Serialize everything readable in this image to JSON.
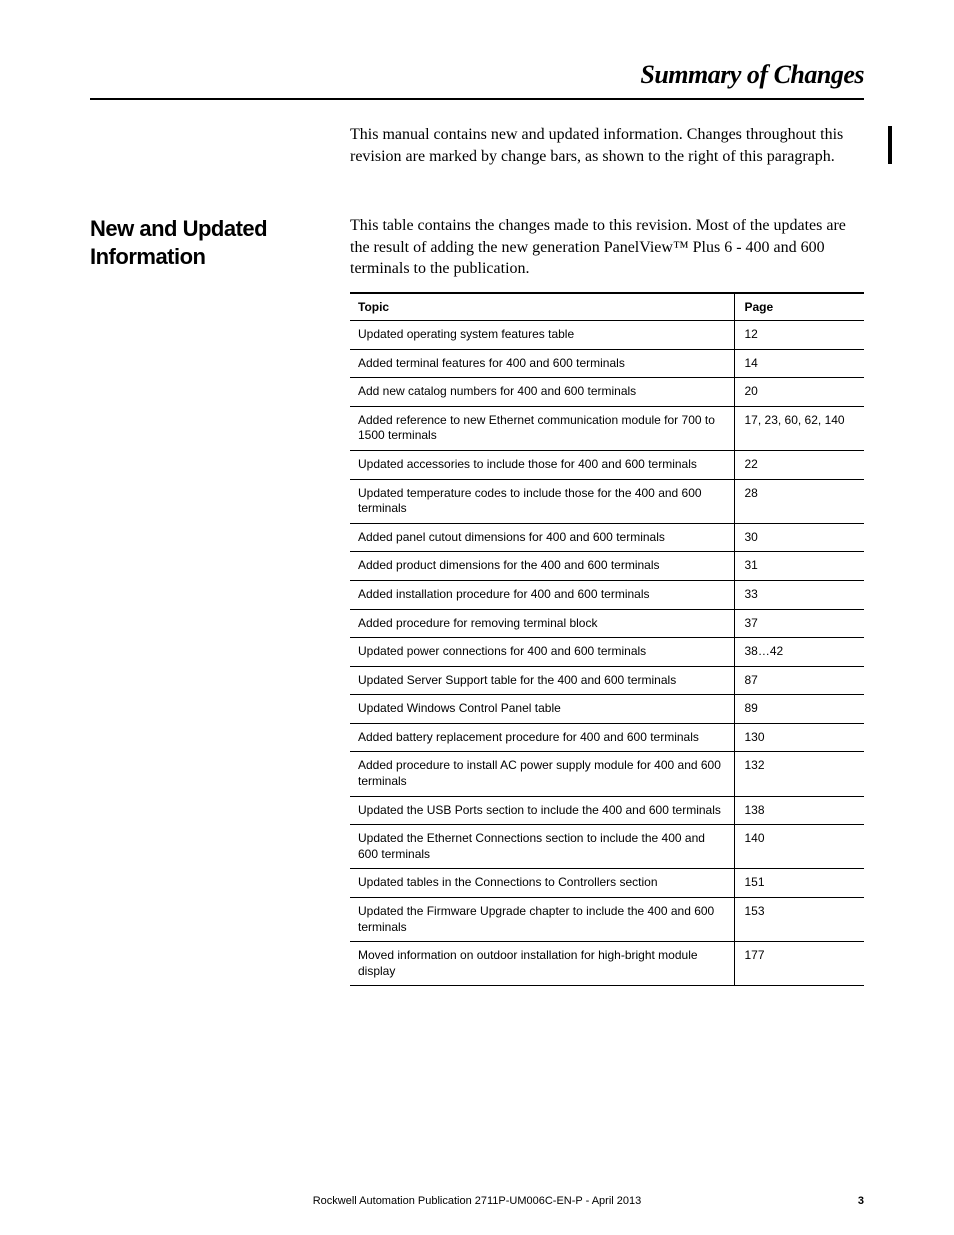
{
  "header": {
    "title": "Summary of Changes"
  },
  "intro": {
    "text": "This manual contains new and updated information. Changes throughout this revision are marked by change bars, as shown to the right of this paragraph."
  },
  "section": {
    "heading": "New and Updated Information",
    "intro": "This table contains the changes made to this revision. Most of the updates are the result of adding the new generation PanelView™ Plus 6 - 400 and 600 terminals to the publication."
  },
  "table": {
    "columns": {
      "topic": "Topic",
      "page": "Page"
    },
    "rows": [
      {
        "topic": "Updated operating system features table",
        "page": "12"
      },
      {
        "topic": "Added terminal features for 400 and 600 terminals",
        "page": "14"
      },
      {
        "topic": "Add new catalog numbers for 400 and 600 terminals",
        "page": "20"
      },
      {
        "topic": "Added reference to new Ethernet communication module for 700 to 1500 terminals",
        "page": "17, 23, 60, 62, 140"
      },
      {
        "topic": "Updated accessories to include those for 400 and 600 terminals",
        "page": "22"
      },
      {
        "topic": "Updated temperature codes to include those for the 400 and 600 terminals",
        "page": "28"
      },
      {
        "topic": "Added panel cutout dimensions for 400 and 600 terminals",
        "page": "30"
      },
      {
        "topic": "Added product dimensions for the 400 and 600 terminals",
        "page": "31"
      },
      {
        "topic": "Added installation procedure for 400 and 600 terminals",
        "page": "33"
      },
      {
        "topic": "Added procedure for removing terminal block",
        "page": "37"
      },
      {
        "topic": "Updated power connections for 400 and 600 terminals",
        "page": "38…42"
      },
      {
        "topic": "Updated Server Support table for the 400 and 600 terminals",
        "page": "87"
      },
      {
        "topic": "Updated Windows Control Panel table",
        "page": "89"
      },
      {
        "topic": "Added battery replacement procedure for 400 and 600 terminals",
        "page": "130"
      },
      {
        "topic": "Added procedure to install AC power supply module for 400 and 600 terminals",
        "page": "132"
      },
      {
        "topic": "Updated the USB Ports section to include the 400 and 600 terminals",
        "page": "138"
      },
      {
        "topic": "Updated the Ethernet Connections section to include the 400 and 600 terminals",
        "page": "140"
      },
      {
        "topic": "Updated tables in the Connections to Controllers section",
        "page": "151"
      },
      {
        "topic": "Updated the Firmware Upgrade chapter to include the 400 and 600 terminals",
        "page": "153"
      },
      {
        "topic": "Moved information on outdoor installation for high-bright module display",
        "page": "177"
      }
    ]
  },
  "footer": {
    "publication": "Rockwell Automation Publication 2711P-UM006C-EN-P - April 2013",
    "page_number": "3"
  }
}
